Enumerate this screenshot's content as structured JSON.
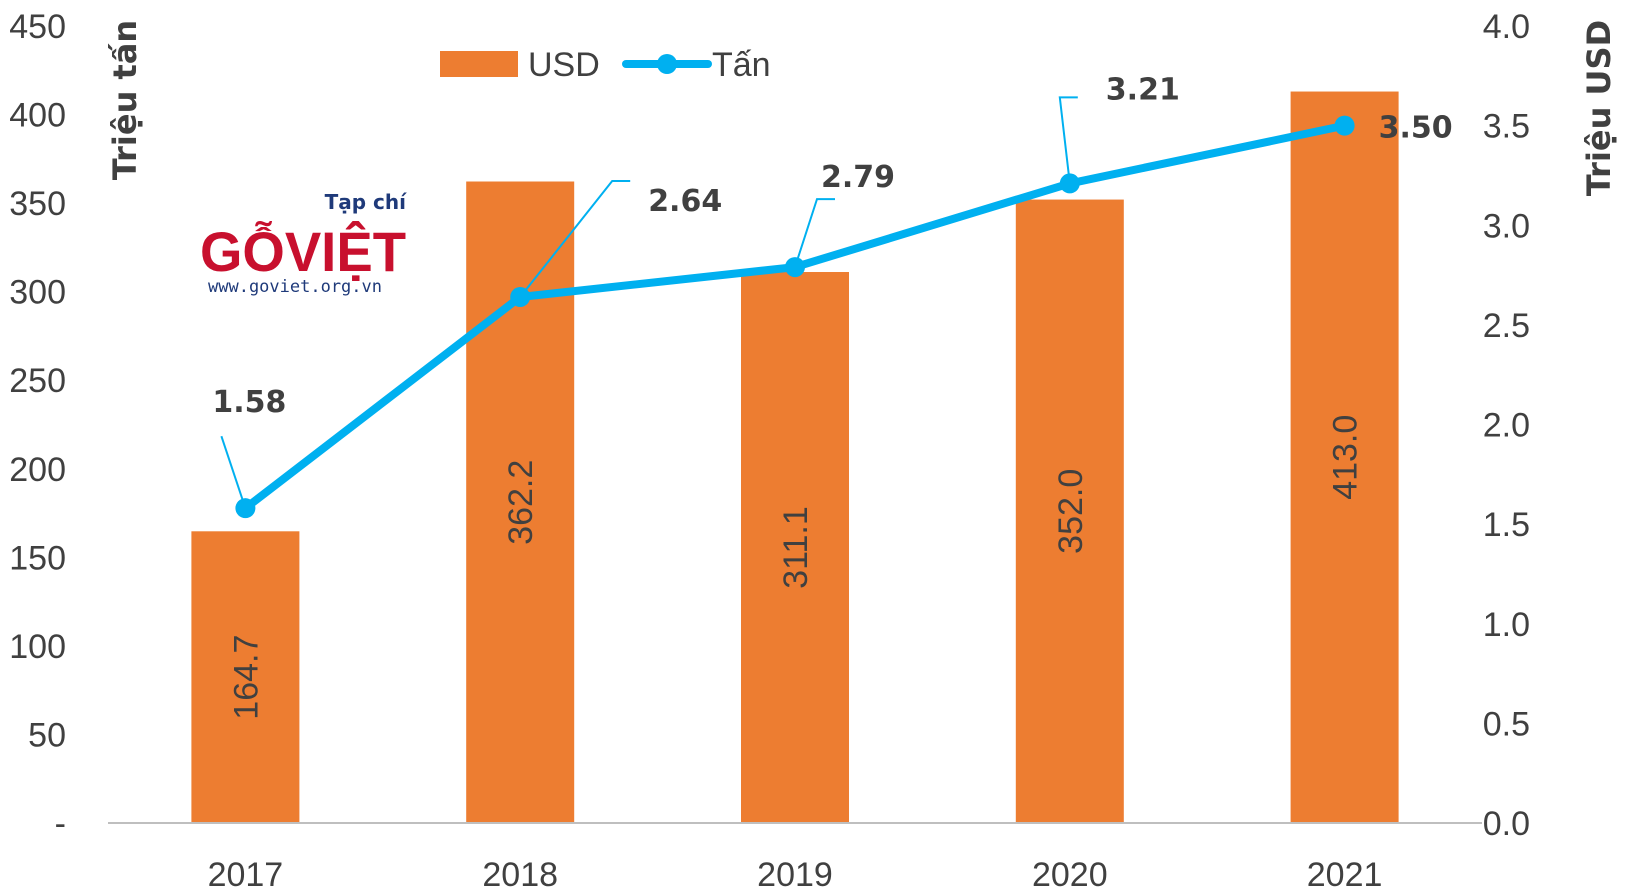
{
  "colors": {
    "bar": "#ED7D31",
    "line": "#00B0F0",
    "text": "#404040",
    "axis": "#BFBFBF",
    "logo_red": "#C8102E",
    "logo_blue": "#1F3A7A"
  },
  "logo": {
    "top_text": "Tạp chí",
    "brand": "GỖVIỆT",
    "url": "www.goviet.org.vn"
  },
  "chart_data": {
    "type": "bar",
    "categories": [
      "2017",
      "2018",
      "2019",
      "2020",
      "2021"
    ],
    "series": [
      {
        "name": "USD",
        "type": "bar",
        "axis": "left",
        "values": [
          164.7,
          362.2,
          311.1,
          352.0,
          413.0
        ],
        "labels": [
          "164.7",
          "362.2",
          "311.1",
          "352.0",
          "413.0"
        ]
      },
      {
        "name": "Tấn",
        "type": "line",
        "axis": "right",
        "values": [
          1.58,
          2.64,
          2.79,
          3.21,
          3.5
        ],
        "labels": [
          "1.58",
          "2.64",
          "2.79",
          "3.21",
          "3.50"
        ]
      }
    ],
    "ylabel": "Triệu tấn",
    "y2label": "Triệu USD",
    "ylim": [
      0,
      450
    ],
    "y2lim": [
      0,
      4.0
    ],
    "yticks": [
      "-",
      "50",
      "100",
      "150",
      "200",
      "250",
      "300",
      "350",
      "400",
      "450"
    ],
    "y2ticks": [
      "0.0",
      "0.5",
      "1.0",
      "1.5",
      "2.0",
      "2.5",
      "3.0",
      "3.5",
      "4.0"
    ],
    "legend": {
      "position": "top-center",
      "items": [
        "USD",
        "Tấn"
      ]
    },
    "grid": false
  }
}
